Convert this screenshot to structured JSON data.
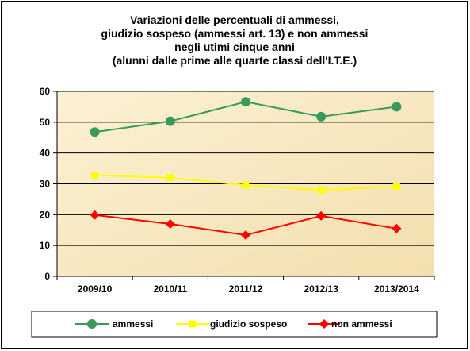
{
  "chart_data": {
    "type": "line",
    "title_lines": [
      "Variazioni delle percentuali di ammessi,",
      "giudizio sospeso (ammessi art. 13) e non ammessi",
      "negli utimi cinque anni",
      "(alunni dalle prime alle quarte classi dell'I.T.E.)"
    ],
    "categories": [
      "2009/10",
      "2010/11",
      "2011/12",
      "2012/13",
      "2013/2014"
    ],
    "ylim": [
      0,
      60
    ],
    "yticks": [
      0,
      10,
      20,
      30,
      40,
      50,
      60
    ],
    "grid": true,
    "legend_placement": "bottom",
    "plot_background": "#f7e9c2",
    "series": [
      {
        "name": "ammessi",
        "color": "#3a9a5c",
        "marker": "circle",
        "values": [
          46.8,
          50.3,
          56.6,
          51.8,
          55.0
        ]
      },
      {
        "name": "giudizio sospeso",
        "color": "#ffff00",
        "marker": "square",
        "values": [
          32.8,
          32.0,
          29.6,
          28.0,
          29.2
        ]
      },
      {
        "name": "non ammessi",
        "color": "#ff0000",
        "marker": "diamond",
        "values": [
          19.9,
          17.0,
          13.4,
          19.6,
          15.5
        ]
      }
    ]
  }
}
